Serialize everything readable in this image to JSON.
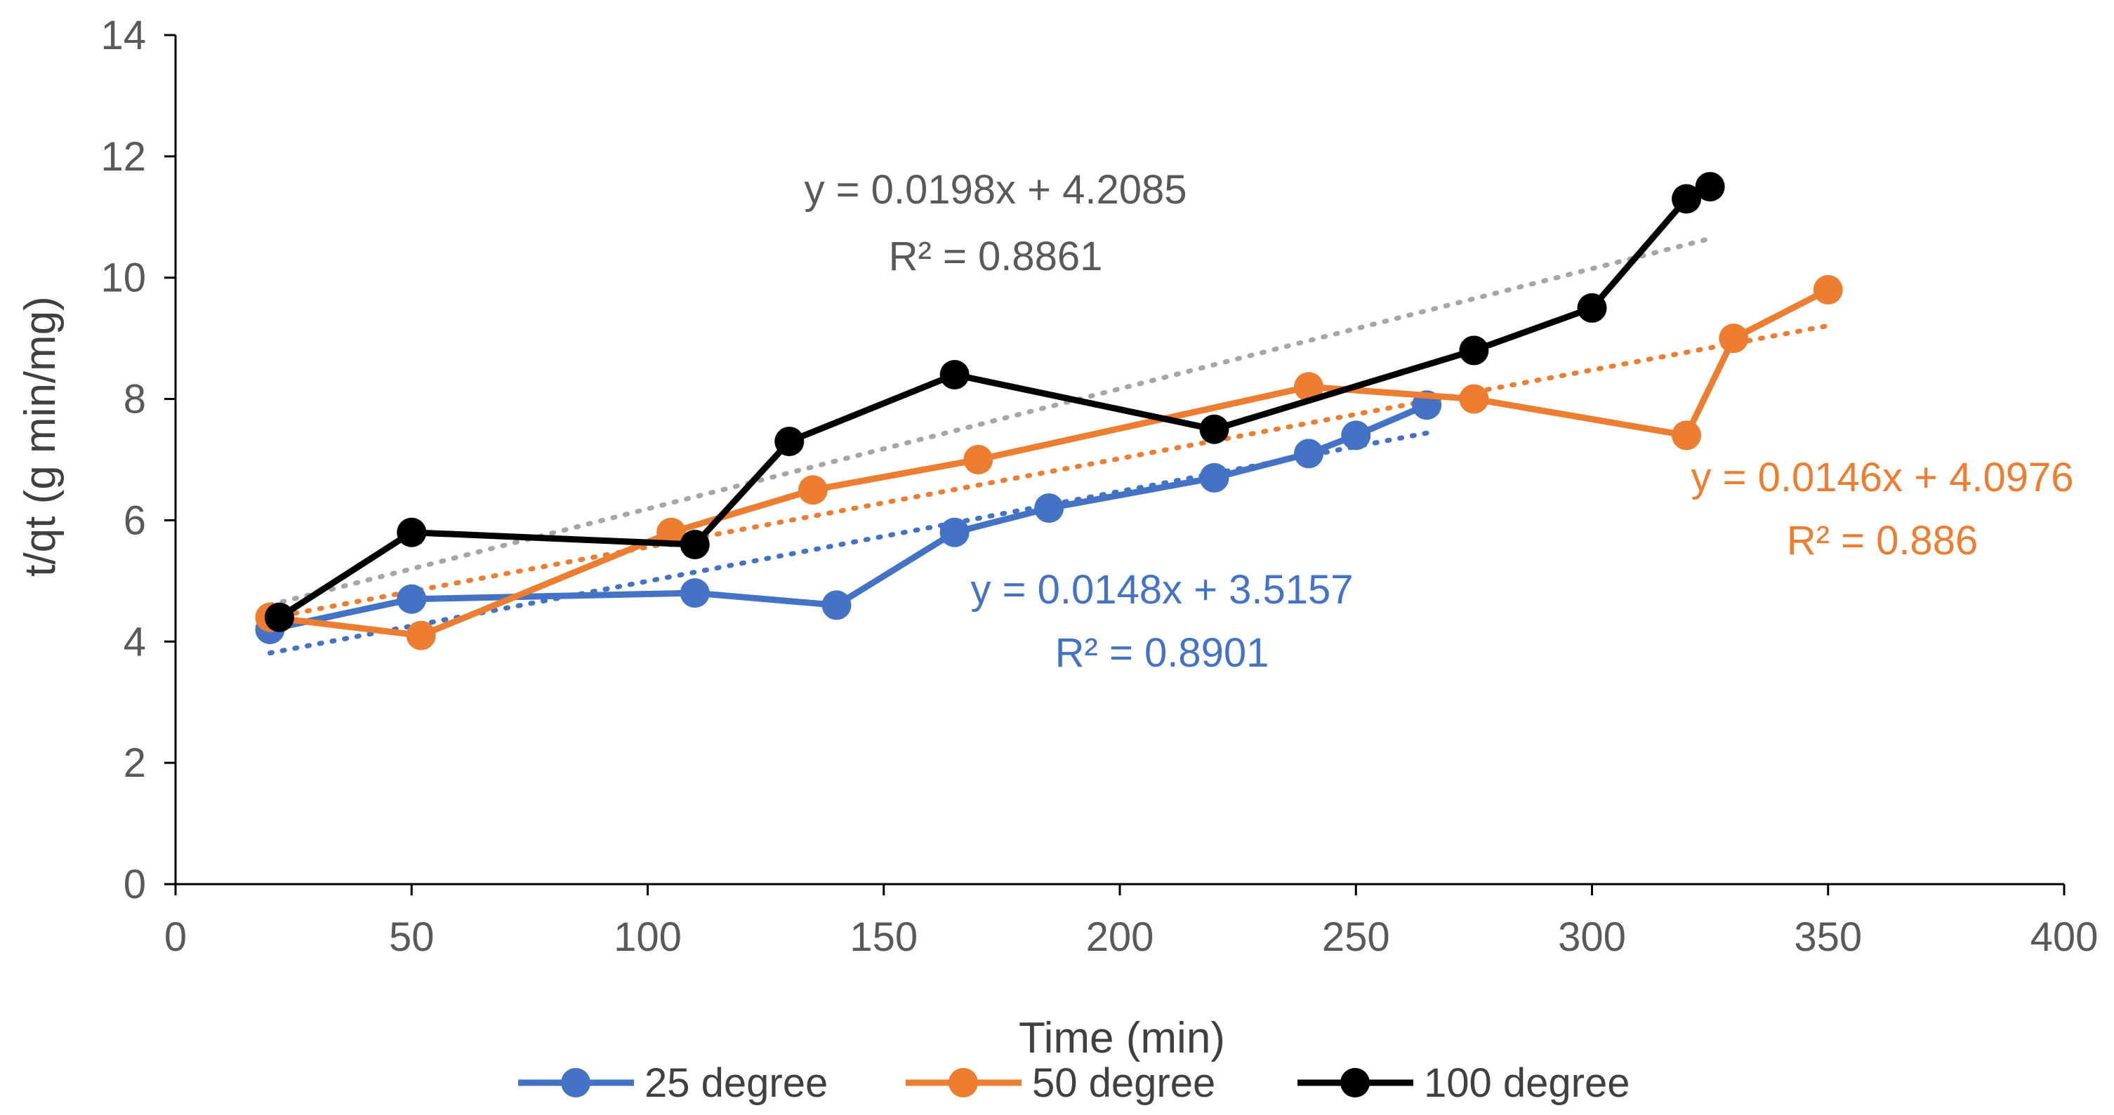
{
  "chart_data": {
    "type": "line",
    "title": "",
    "xlabel": "Time (min)",
    "ylabel": "t/qt (g min/mg)",
    "xlim": [
      0,
      400
    ],
    "ylim": [
      0,
      14
    ],
    "xticks": [
      0,
      50,
      100,
      150,
      200,
      250,
      300,
      350,
      400
    ],
    "yticks": [
      0,
      2,
      4,
      6,
      8,
      10,
      12,
      14
    ],
    "grid": false,
    "legend_position": "bottom",
    "series": [
      {
        "name": "25 degree",
        "color": "#4472C4",
        "x": [
          20,
          50,
          110,
          140,
          165,
          185,
          220,
          240,
          250,
          265
        ],
        "y": [
          4.2,
          4.7,
          4.8,
          4.6,
          5.8,
          6.2,
          6.7,
          7.1,
          7.4,
          7.9
        ],
        "trendline": {
          "slope": 0.0148,
          "intercept": 3.5157,
          "x_range": [
            20,
            265
          ]
        }
      },
      {
        "name": "50 degree",
        "color": "#ED7D31",
        "x": [
          20,
          52,
          105,
          135,
          170,
          240,
          275,
          320,
          330,
          350
        ],
        "y": [
          4.4,
          4.1,
          5.8,
          6.5,
          7.0,
          8.2,
          8.0,
          7.4,
          9.0,
          9.8
        ],
        "trendline": {
          "slope": 0.0146,
          "intercept": 4.0976,
          "x_range": [
            20,
            350
          ]
        }
      },
      {
        "name": "100 degree",
        "color": "#000000",
        "x": [
          22,
          50,
          110,
          130,
          165,
          220,
          275,
          300,
          320,
          325
        ],
        "y": [
          4.4,
          5.8,
          5.6,
          7.3,
          8.4,
          7.5,
          8.8,
          9.5,
          11.3,
          11.5
        ],
        "trendline": {
          "slope": 0.0198,
          "intercept": 4.2085,
          "x_range": [
            20,
            325
          ],
          "color": "#A6A6A6"
        }
      }
    ],
    "annotations": [
      {
        "series": "100 degree",
        "equation": "y = 0.0198x + 4.2085",
        "r2": "R² = 0.8861",
        "color": "#595959"
      },
      {
        "series": "50 degree",
        "equation": "y = 0.0146x + 4.0976",
        "r2": "R² = 0.886",
        "color": "#ED7D31"
      },
      {
        "series": "25 degree",
        "equation": "y = 0.0148x + 3.5157",
        "r2": "R² = 0.8901",
        "color": "#4472C4"
      }
    ]
  }
}
